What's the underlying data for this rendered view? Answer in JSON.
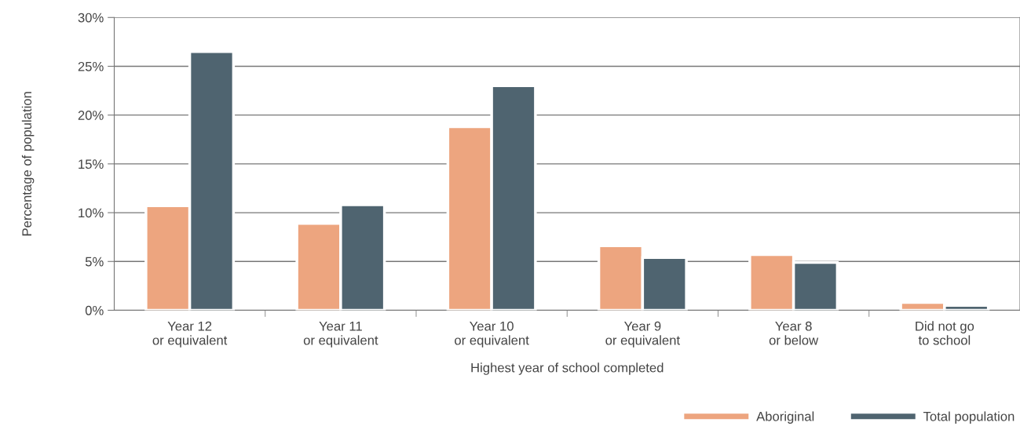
{
  "chart_data": {
    "type": "bar",
    "xlabel": "Highest year of school completed",
    "ylabel": "Percentage of population",
    "categories": [
      "Year 12\nor equivalent",
      "Year 11\nor equivalent",
      "Year 10\nor equivalent",
      "Year 9\nor equivalent",
      "Year 8\nor below",
      "Did not go\nto school"
    ],
    "series": [
      {
        "name": "Aboriginal",
        "color": "#eda57f",
        "values": [
          10.7,
          8.9,
          18.8,
          6.6,
          5.7,
          0.8
        ]
      },
      {
        "name": "Total population",
        "color": "#4f6470",
        "values": [
          26.5,
          10.8,
          23.0,
          5.4,
          4.9,
          0.5
        ]
      }
    ],
    "ylim": [
      0,
      30
    ],
    "yticks": [
      {
        "value": 0,
        "label": "0%"
      },
      {
        "value": 5,
        "label": "5%"
      },
      {
        "value": 10,
        "label": "10%"
      },
      {
        "value": 15,
        "label": "15%"
      },
      {
        "value": 20,
        "label": "20%"
      },
      {
        "value": 25,
        "label": "25%"
      },
      {
        "value": 30,
        "label": "30%"
      }
    ],
    "grid": "y",
    "legend": "bottom right"
  }
}
